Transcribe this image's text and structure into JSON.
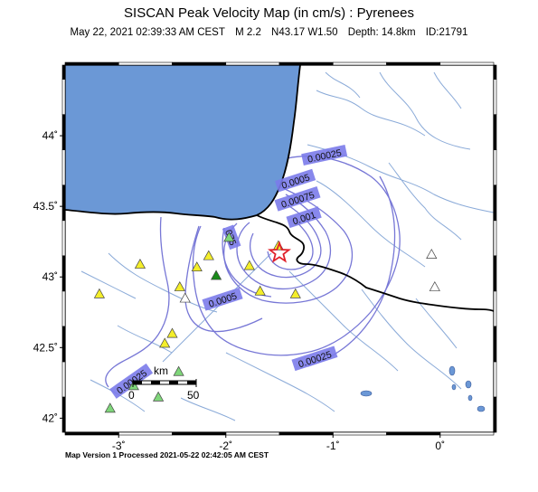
{
  "header": {
    "title": "SISCAN Peak Velocity Map (in cm/s) : Pyrenees",
    "date": "May 22, 2021 02:39:33 AM CEST",
    "magnitude": "M 2.2",
    "location": "N43.17 W1.50",
    "depth": "Depth: 14.8km",
    "event_id": "ID:21791"
  },
  "footer": "Map Version 1 Processed 2021-05-22 02:42:05 AM CEST",
  "map": {
    "lon_range": [
      -3.5,
      0.5
    ],
    "lat_range": [
      41.9,
      44.5
    ],
    "lon_ticks": [
      {
        "value": -3,
        "label": "-3˚"
      },
      {
        "value": -2,
        "label": "-2˚"
      },
      {
        "value": -1,
        "label": "-1˚"
      },
      {
        "value": 0,
        "label": "0˚"
      }
    ],
    "lat_ticks": [
      {
        "value": 44,
        "label": "44˚"
      },
      {
        "value": 43.5,
        "label": "43.5˚"
      },
      {
        "value": 43,
        "label": "43˚"
      },
      {
        "value": 42.5,
        "label": "42.5˚"
      },
      {
        "value": 42,
        "label": "42˚"
      }
    ],
    "colors": {
      "sea": "#6b98d6",
      "land": "#ffffff",
      "rivers": "#8aaad8",
      "contours": "#7777d6",
      "contour_label_bg": "#7b7bea",
      "border": "#000000",
      "epicenter": "#e0202a",
      "station_yellow": "#f4ee2a",
      "station_green_light": "#7fd67a",
      "station_green_dark": "#1a8a1a",
      "station_white": "#ffffff"
    },
    "epicenter": {
      "lon": -1.5,
      "lat": 43.17
    },
    "contour_labels": [
      {
        "text": "0.00025",
        "lon": -1.08,
        "lat": 43.86
      },
      {
        "text": "0.0005",
        "lon": -1.35,
        "lat": 43.68
      },
      {
        "text": "0.00075",
        "lon": -1.33,
        "lat": 43.55
      },
      {
        "text": "0.001",
        "lon": -1.27,
        "lat": 43.42
      },
      {
        "text": "075",
        "lon": -1.95,
        "lat": 43.28
      },
      {
        "text": "0.0005",
        "lon": -2.03,
        "lat": 42.84
      },
      {
        "text": "0.00025",
        "lon": -1.17,
        "lat": 42.42
      },
      {
        "text": "0.00025",
        "lon": -2.88,
        "lat": 42.26
      }
    ],
    "stations": [
      {
        "lon": -3.18,
        "lat": 42.88,
        "type": "yellow"
      },
      {
        "lon": -2.8,
        "lat": 43.09,
        "type": "yellow"
      },
      {
        "lon": -2.16,
        "lat": 43.15,
        "type": "yellow"
      },
      {
        "lon": -1.97,
        "lat": 43.28,
        "type": "green_light"
      },
      {
        "lon": -2.27,
        "lat": 43.07,
        "type": "yellow"
      },
      {
        "lon": -2.09,
        "lat": 43.01,
        "type": "green_dark"
      },
      {
        "lon": -2.43,
        "lat": 42.93,
        "type": "yellow"
      },
      {
        "lon": -2.38,
        "lat": 42.85,
        "type": "white"
      },
      {
        "lon": -1.51,
        "lat": 43.22,
        "type": "yellow"
      },
      {
        "lon": -1.78,
        "lat": 43.08,
        "type": "yellow"
      },
      {
        "lon": -1.35,
        "lat": 42.88,
        "type": "yellow"
      },
      {
        "lon": -1.68,
        "lat": 42.9,
        "type": "yellow"
      },
      {
        "lon": -2.5,
        "lat": 42.6,
        "type": "yellow"
      },
      {
        "lon": -2.57,
        "lat": 42.53,
        "type": "yellow"
      },
      {
        "lon": -2.44,
        "lat": 42.33,
        "type": "green_light"
      },
      {
        "lon": -2.86,
        "lat": 42.23,
        "type": "green_light"
      },
      {
        "lon": -2.63,
        "lat": 42.15,
        "type": "green_light"
      },
      {
        "lon": -3.08,
        "lat": 42.07,
        "type": "green_light"
      },
      {
        "lon": -0.08,
        "lat": 43.16,
        "type": "white"
      },
      {
        "lon": -0.05,
        "lat": 42.93,
        "type": "white"
      }
    ],
    "scale_bar": {
      "unit": "km",
      "labels": [
        "0",
        "50"
      ]
    }
  }
}
